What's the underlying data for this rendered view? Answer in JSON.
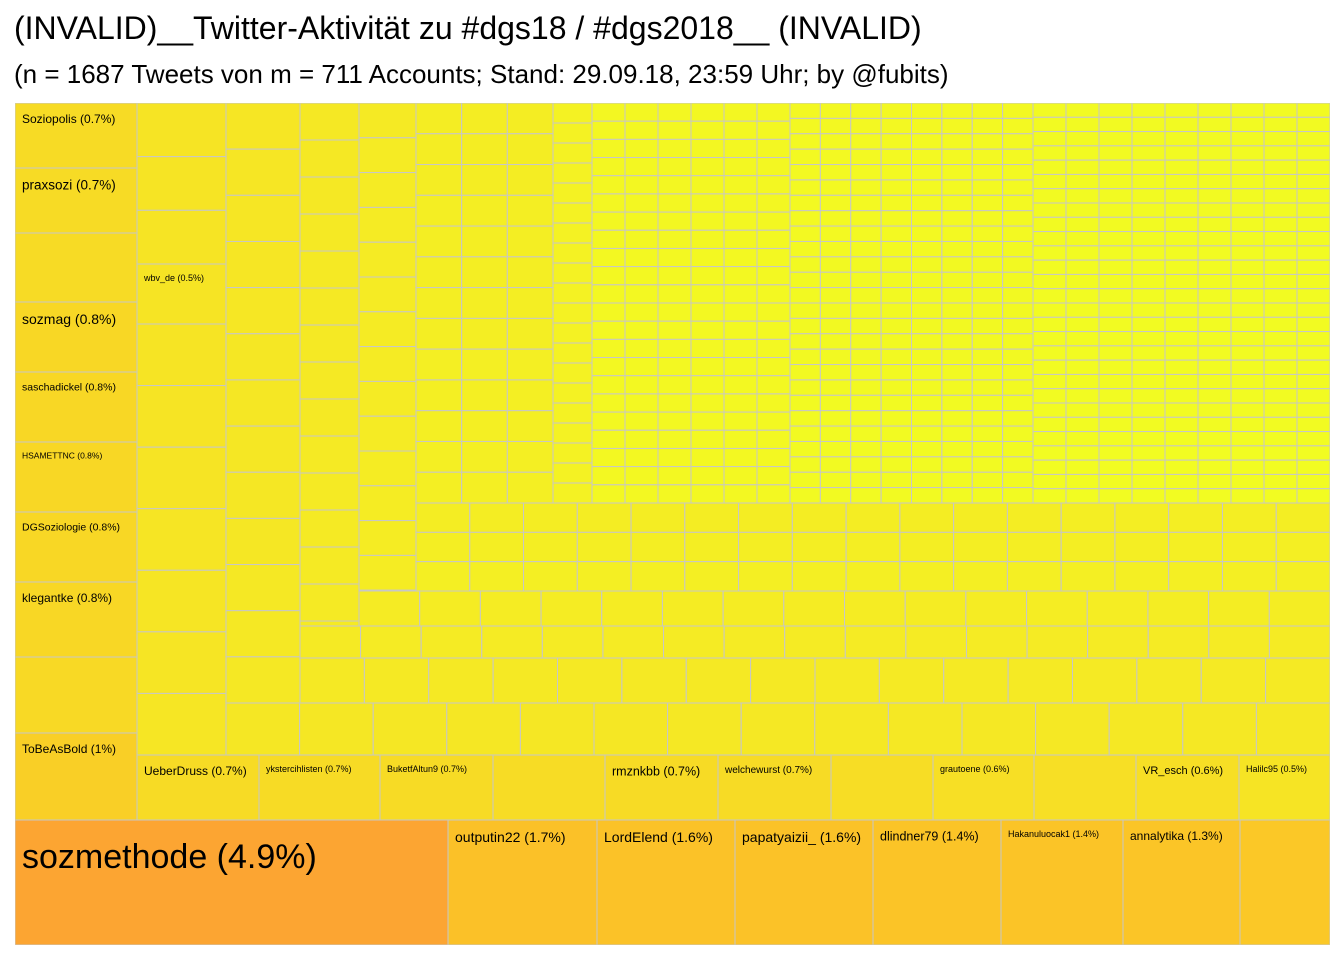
{
  "title": "(INVALID)__Twitter-Aktivität zu #dgs18 / #dgs2018__ (INVALID)",
  "subtitle": "(n = 1687 Tweets von m = 711 Accounts; Stand: 29.09.18, 23:59 Uhr; by @fubits)",
  "colors": {
    "low": "#f2fc22",
    "mid": "#fbc527",
    "high": "#fca532",
    "border": "#c7c7c7"
  },
  "chart_data": {
    "type": "treemap",
    "total_tweets": 1687,
    "total_accounts": 711,
    "items": [
      {
        "label": "sozmethode",
        "pct": 4.9
      },
      {
        "label": "outputin22",
        "pct": 1.7
      },
      {
        "label": "LordElend",
        "pct": 1.6
      },
      {
        "label": "papatyaizii_",
        "pct": 1.6
      },
      {
        "label": "dlindner79",
        "pct": 1.4
      },
      {
        "label": "Hakanuluocak1",
        "pct": 1.4
      },
      {
        "label": "annalytika",
        "pct": 1.3
      },
      {
        "label": "ToBeAsBold",
        "pct": 1
      },
      {
        "label": "UeberDruss",
        "pct": 0.7
      },
      {
        "label": "ykstercihlisten",
        "pct": 0.7
      },
      {
        "label": "BuketfAltun9",
        "pct": 0.7
      },
      {
        "label": "rmznkbb",
        "pct": 0.7
      },
      {
        "label": "welchewurst",
        "pct": 0.7
      },
      {
        "label": "grautoene",
        "pct": 0.6
      },
      {
        "label": "VR_esch",
        "pct": 0.6
      },
      {
        "label": "Halilc95",
        "pct": 0.5
      },
      {
        "label": "Soziopolis",
        "pct": 0.7
      },
      {
        "label": "praxsozi",
        "pct": 0.7
      },
      {
        "label": "sozmag",
        "pct": 0.8
      },
      {
        "label": "saschadickel",
        "pct": 0.8
      },
      {
        "label": "HSAMETTNC",
        "pct": 0.8
      },
      {
        "label": "DGSoziologie",
        "pct": 0.8
      },
      {
        "label": "klegantke",
        "pct": 0.8
      },
      {
        "label": "wbv_de",
        "pct": 0.5
      }
    ]
  }
}
